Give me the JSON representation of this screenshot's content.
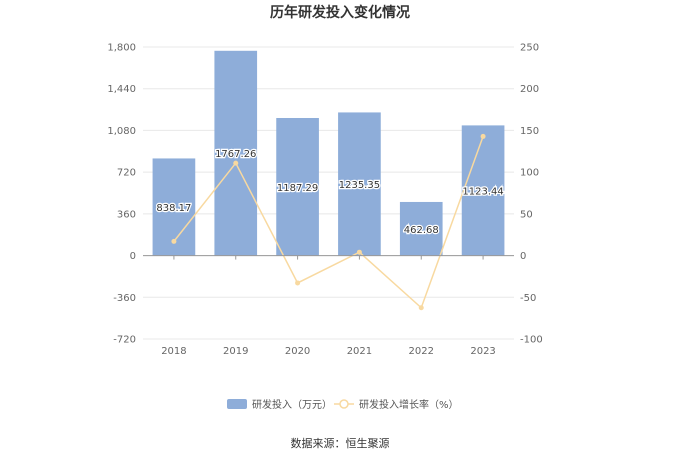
{
  "chart_data": {
    "type": "bar",
    "title": "历年研发投入变化情况",
    "categories": [
      "2018",
      "2019",
      "2020",
      "2021",
      "2022",
      "2023"
    ],
    "series": [
      {
        "name": "研发投入（万元）",
        "type": "bar",
        "axis": "left",
        "values": [
          838.17,
          1767.26,
          1187.29,
          1235.35,
          462.68,
          1123.44
        ],
        "labels": [
          "838.17",
          "1767.26",
          "1187.29",
          "1235.35",
          "462.68",
          "1123.44"
        ],
        "color": "#8eadd9"
      },
      {
        "name": "研发投入增长率（%）",
        "type": "line",
        "axis": "right",
        "values": [
          17,
          110.86,
          -32.82,
          4.05,
          -62.55,
          142.81
        ],
        "color": "#f8d9a0"
      }
    ],
    "y_left": {
      "ylim": [
        -720,
        1800
      ],
      "ticks": [
        "1,800",
        "1,440",
        "1,080",
        "720",
        "360",
        "0",
        "-360",
        "-720"
      ]
    },
    "y_right": {
      "ylim": [
        -100,
        250
      ],
      "ticks": [
        "250",
        "200",
        "150",
        "100",
        "50",
        "0",
        "-50",
        "-100"
      ]
    },
    "grid": true,
    "legend": "bottom"
  },
  "source": "数据来源：恒生聚源"
}
